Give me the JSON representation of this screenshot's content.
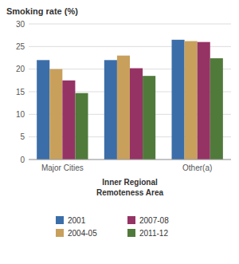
{
  "chart_data": {
    "type": "bar",
    "title": "Smoking rate (%)",
    "categories": [
      "Major Cities",
      null,
      "Other(a)"
    ],
    "xlabel": [
      "Inner Regional",
      "Remoteness Area"
    ],
    "series": [
      {
        "name": "2001",
        "color": "#3B6EA8",
        "values": [
          22.0,
          22.0,
          26.5
        ]
      },
      {
        "name": "2004-05",
        "color": "#C8A05C",
        "values": [
          20.0,
          23.0,
          26.2
        ]
      },
      {
        "name": "2007-08",
        "color": "#963365",
        "values": [
          17.5,
          20.2,
          26.0
        ]
      },
      {
        "name": "2011-12",
        "color": "#507A3A",
        "values": [
          14.7,
          18.5,
          22.4
        ]
      }
    ],
    "ylim": [
      0,
      30
    ],
    "yticks": [
      0,
      5,
      10,
      15,
      20,
      25,
      30
    ],
    "grid": true,
    "legend": "bottom"
  }
}
